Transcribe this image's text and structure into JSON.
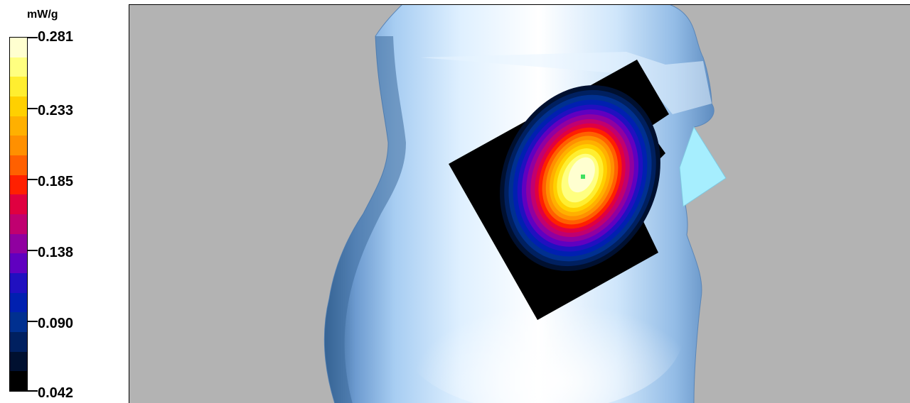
{
  "legend": {
    "unit": "mW/g",
    "ticks": [
      "0.281",
      "0.233",
      "0.185",
      "0.138",
      "0.090",
      "0.042"
    ],
    "colors_top_to_bottom": [
      "#ffffd0",
      "#ffff80",
      "#ffee30",
      "#ffd000",
      "#ffb000",
      "#ff9000",
      "#ff6000",
      "#ff2000",
      "#e00040",
      "#c00070",
      "#9000a0",
      "#6000c0",
      "#2010c0",
      "#0020b0",
      "#003090",
      "#002060",
      "#001030",
      "#000000"
    ]
  },
  "scene": {
    "background": "#b3b3b3",
    "body_color": "#9ec6ef",
    "hotspot_marker_color": "#40e060"
  }
}
